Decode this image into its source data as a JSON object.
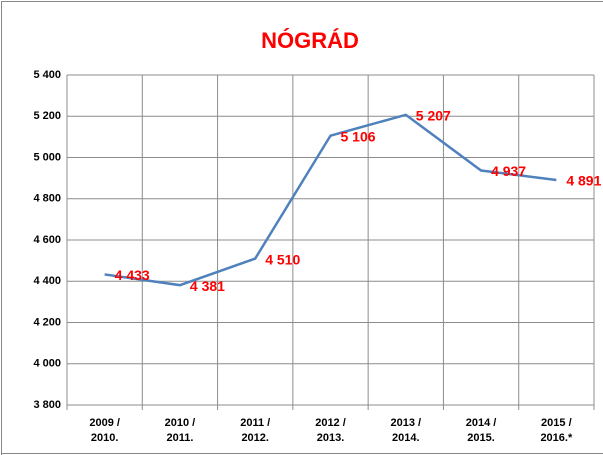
{
  "chart_data": {
    "type": "line",
    "title": "NÓGRÁD",
    "categories": [
      [
        "2009 /",
        "2010."
      ],
      [
        "2010 /",
        "2011."
      ],
      [
        "2011 /",
        "2012."
      ],
      [
        "2012 /",
        "2013."
      ],
      [
        "2013 /",
        "2014."
      ],
      [
        "2014 /",
        "2015."
      ],
      [
        "2015 /",
        "2016.*"
      ]
    ],
    "series": [
      {
        "name": "Nógrád",
        "color": "#4f81bd",
        "values": [
          4433,
          4381,
          4510,
          5106,
          5207,
          4937,
          4891
        ],
        "value_labels": [
          "4 433",
          "4 381",
          "4 510",
          "5 106",
          "5 207",
          "4 937",
          "4 891"
        ]
      }
    ],
    "ylim": [
      3800,
      5400
    ],
    "yticks": [
      {
        "value": 3800,
        "label": "3 800"
      },
      {
        "value": 4000,
        "label": "4 000"
      },
      {
        "value": 4200,
        "label": "4 200"
      },
      {
        "value": 4400,
        "label": "4 400"
      },
      {
        "value": 4600,
        "label": "4 600"
      },
      {
        "value": 4800,
        "label": "4 800"
      },
      {
        "value": 5000,
        "label": "5 000"
      },
      {
        "value": 5200,
        "label": "5 200"
      },
      {
        "value": 5400,
        "label": "5 400"
      }
    ],
    "grid": true
  }
}
